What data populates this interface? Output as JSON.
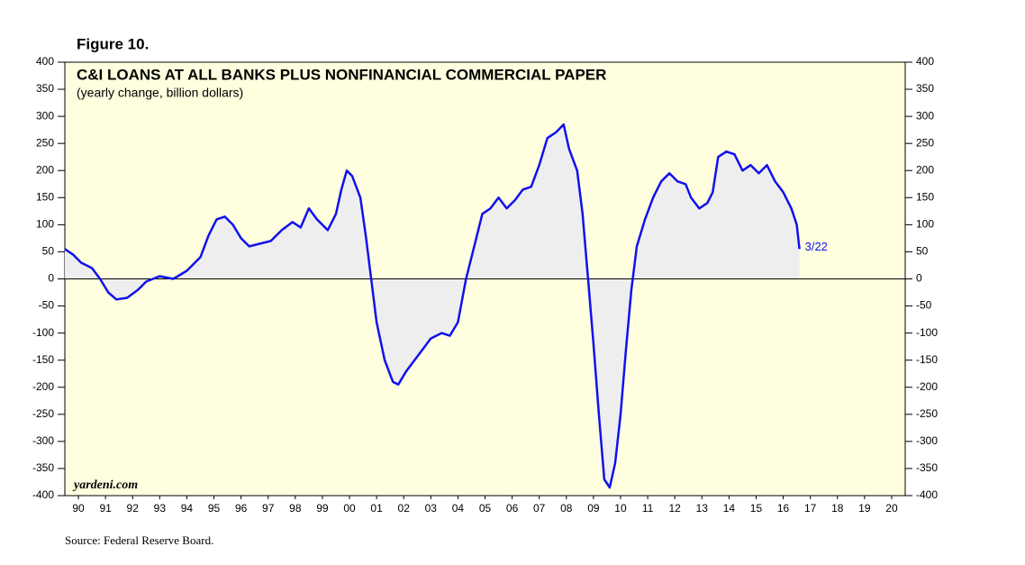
{
  "chart_data": {
    "type": "line",
    "figure_label": "Figure 10.",
    "title": "C&I LOANS AT ALL BANKS PLUS NONFINANCIAL COMMERCIAL PAPER",
    "subtitle": "(yearly change, billion dollars)",
    "watermark": "yardeni.com",
    "source": "Source: Federal Reserve Board.",
    "end_label": "3/22",
    "color": "#1010ee",
    "area_color": "#eeeeee",
    "background": "#ffffe0",
    "x": [
      1990.0,
      1990.3,
      1990.6,
      1991.0,
      1991.3,
      1991.6,
      1991.9,
      1992.3,
      1992.7,
      1993.0,
      1993.5,
      1994.0,
      1994.5,
      1995.0,
      1995.3,
      1995.6,
      1995.9,
      1996.2,
      1996.5,
      1996.8,
      1997.2,
      1997.6,
      1998.0,
      1998.4,
      1998.7,
      1999.0,
      1999.3,
      1999.7,
      2000.0,
      2000.2,
      2000.4,
      2000.6,
      2000.9,
      2001.1,
      2001.3,
      2001.5,
      2001.8,
      2002.1,
      2002.3,
      2002.6,
      2002.9,
      2003.2,
      2003.5,
      2003.9,
      2004.2,
      2004.5,
      2004.8,
      2005.1,
      2005.4,
      2005.7,
      2006.0,
      2006.3,
      2006.6,
      2006.9,
      2007.2,
      2007.5,
      2007.8,
      2008.1,
      2008.4,
      2008.6,
      2008.9,
      2009.1,
      2009.3,
      2009.5,
      2009.7,
      2009.9,
      2010.1,
      2010.3,
      2010.5,
      2010.7,
      2010.9,
      2011.1,
      2011.4,
      2011.7,
      2012.0,
      2012.3,
      2012.6,
      2012.9,
      2013.1,
      2013.4,
      2013.7,
      2013.9,
      2014.1,
      2014.4,
      2014.7,
      2015.0,
      2015.3,
      2015.6,
      2015.9,
      2016.2,
      2016.5,
      2016.8,
      2017.0,
      2017.1
    ],
    "values": [
      55,
      45,
      30,
      20,
      0,
      -25,
      -38,
      -35,
      -20,
      -5,
      5,
      0,
      15,
      40,
      80,
      110,
      115,
      100,
      75,
      60,
      65,
      70,
      90,
      105,
      95,
      130,
      110,
      90,
      120,
      165,
      200,
      190,
      150,
      80,
      0,
      -80,
      -150,
      -190,
      -195,
      -170,
      -150,
      -130,
      -110,
      -100,
      -105,
      -80,
      0,
      60,
      120,
      130,
      150,
      130,
      145,
      165,
      170,
      210,
      260,
      270,
      285,
      240,
      200,
      120,
      0,
      -120,
      -250,
      -370,
      -385,
      -340,
      -250,
      -130,
      -20,
      60,
      110,
      150,
      180,
      195,
      180,
      175,
      150,
      130,
      140,
      160,
      225,
      235,
      230,
      200,
      210,
      195,
      210,
      180,
      160,
      130,
      100,
      55
    ],
    "xlim": [
      1990,
      2021
    ],
    "xticks": [
      {
        "value": 1990.5,
        "label": "90"
      },
      {
        "value": 1991.5,
        "label": "91"
      },
      {
        "value": 1992.5,
        "label": "92"
      },
      {
        "value": 1993.5,
        "label": "93"
      },
      {
        "value": 1994.5,
        "label": "94"
      },
      {
        "value": 1995.5,
        "label": "95"
      },
      {
        "value": 1996.5,
        "label": "96"
      },
      {
        "value": 1997.5,
        "label": "97"
      },
      {
        "value": 1998.5,
        "label": "98"
      },
      {
        "value": 1999.5,
        "label": "99"
      },
      {
        "value": 2000.5,
        "label": "00"
      },
      {
        "value": 2001.5,
        "label": "01"
      },
      {
        "value": 2002.5,
        "label": "02"
      },
      {
        "value": 2003.5,
        "label": "03"
      },
      {
        "value": 2004.5,
        "label": "04"
      },
      {
        "value": 2005.5,
        "label": "05"
      },
      {
        "value": 2006.5,
        "label": "06"
      },
      {
        "value": 2007.5,
        "label": "07"
      },
      {
        "value": 2008.5,
        "label": "08"
      },
      {
        "value": 2009.5,
        "label": "09"
      },
      {
        "value": 2010.5,
        "label": "10"
      },
      {
        "value": 2011.5,
        "label": "11"
      },
      {
        "value": 2012.5,
        "label": "12"
      },
      {
        "value": 2013.5,
        "label": "13"
      },
      {
        "value": 2014.5,
        "label": "14"
      },
      {
        "value": 2015.5,
        "label": "15"
      },
      {
        "value": 2016.5,
        "label": "16"
      },
      {
        "value": 2017.5,
        "label": "17"
      },
      {
        "value": 2018.5,
        "label": "18"
      },
      {
        "value": 2019.5,
        "label": "19"
      },
      {
        "value": 2020.5,
        "label": "20"
      }
    ],
    "ylim": [
      -400,
      400
    ],
    "yticks": [
      -400,
      -350,
      -300,
      -250,
      -200,
      -150,
      -100,
      -50,
      0,
      50,
      100,
      150,
      200,
      250,
      300,
      350,
      400
    ]
  }
}
